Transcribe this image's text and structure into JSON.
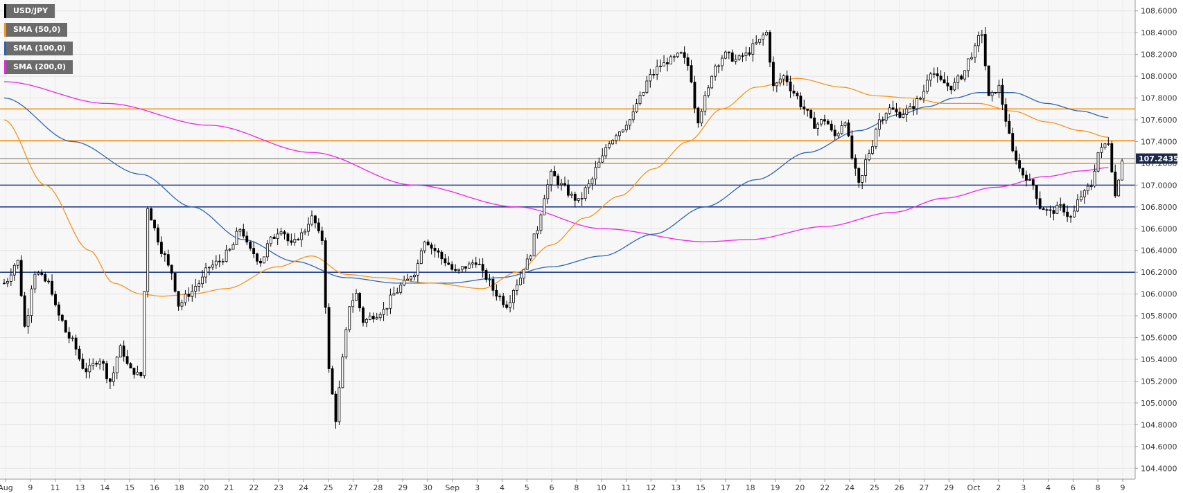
{
  "chart_data": {
    "type": "candlestick",
    "symbol": "USD/JPY",
    "last_price_label": "107.2435",
    "y_range": [
      104.3,
      108.7
    ],
    "y_ticks": [
      "104.4000",
      "104.6000",
      "104.8000",
      "105.0000",
      "105.2000",
      "105.4000",
      "105.6000",
      "105.8000",
      "106.0000",
      "106.2000",
      "106.4000",
      "106.6000",
      "106.8000",
      "107.0000",
      "107.2000",
      "107.4000",
      "107.6000",
      "107.8000",
      "108.0000",
      "108.2000",
      "108.4000",
      "108.6000"
    ],
    "x_ticks": [
      "Aug",
      "9",
      "11",
      "13",
      "14",
      "15",
      "16",
      "18",
      "20",
      "21",
      "22",
      "23",
      "24",
      "25",
      "27",
      "28",
      "29",
      "30",
      "Sep",
      "3",
      "4",
      "5",
      "6",
      "8",
      "10",
      "11",
      "12",
      "13",
      "15",
      "17",
      "18",
      "19",
      "20",
      "22",
      "24",
      "25",
      "26",
      "27",
      "29",
      "Oct",
      "2",
      "3",
      "4",
      "6",
      "8",
      "9"
    ],
    "legend": [
      {
        "label": "USD/JPY",
        "color": "#000000"
      },
      {
        "label": "SMA (50,0)",
        "color": "#f7931a"
      },
      {
        "label": "SMA (100,0)",
        "color": "#2b63b8"
      },
      {
        "label": "SMA (200,0)",
        "color": "#ee22ee"
      }
    ],
    "horizontal_levels": [
      {
        "value": 107.7,
        "color": "#f7931a"
      },
      {
        "value": 107.41,
        "color": "#f7931a"
      },
      {
        "value": 107.2,
        "color": "#f7931a"
      },
      {
        "value": 107.0,
        "color": "#1f3f8f"
      },
      {
        "value": 106.8,
        "color": "#1f3f8f"
      },
      {
        "value": 106.2,
        "color": "#1f3f8f"
      }
    ],
    "price_anchors": [
      [
        0,
        106.1
      ],
      [
        4,
        106.3
      ],
      [
        6,
        105.7
      ],
      [
        9,
        106.2
      ],
      [
        13,
        106.1
      ],
      [
        16,
        105.8
      ],
      [
        19,
        105.6
      ],
      [
        24,
        105.3
      ],
      [
        28,
        105.4
      ],
      [
        31,
        105.2
      ],
      [
        34,
        105.5
      ],
      [
        37,
        105.3
      ],
      [
        40,
        105.25
      ],
      [
        42,
        106.8
      ],
      [
        44,
        106.6
      ],
      [
        46,
        106.4
      ],
      [
        49,
        106.2
      ],
      [
        51,
        105.9
      ],
      [
        54,
        106.0
      ],
      [
        57,
        106.1
      ],
      [
        60,
        106.25
      ],
      [
        63,
        106.3
      ],
      [
        66,
        106.4
      ],
      [
        69,
        106.6
      ],
      [
        72,
        106.4
      ],
      [
        75,
        106.3
      ],
      [
        78,
        106.5
      ],
      [
        81,
        106.6
      ],
      [
        84,
        106.45
      ],
      [
        87,
        106.55
      ],
      [
        90,
        106.7
      ],
      [
        93,
        106.5
      ],
      [
        95,
        105.3
      ],
      [
        97,
        104.85
      ],
      [
        99,
        105.4
      ],
      [
        101,
        105.9
      ],
      [
        103,
        106.0
      ],
      [
        105,
        105.75
      ],
      [
        108,
        105.8
      ],
      [
        111,
        105.85
      ],
      [
        114,
        106.0
      ],
      [
        117,
        106.1
      ],
      [
        120,
        106.2
      ],
      [
        123,
        106.5
      ],
      [
        126,
        106.4
      ],
      [
        129,
        106.3
      ],
      [
        132,
        106.2
      ],
      [
        135,
        106.25
      ],
      [
        138,
        106.3
      ],
      [
        141,
        106.15
      ],
      [
        144,
        106.0
      ],
      [
        147,
        105.9
      ],
      [
        150,
        106.1
      ],
      [
        153,
        106.3
      ],
      [
        156,
        106.6
      ],
      [
        158,
        106.9
      ],
      [
        160,
        107.1
      ],
      [
        163,
        107.0
      ],
      [
        166,
        106.9
      ],
      [
        168,
        106.85
      ],
      [
        171,
        107.0
      ],
      [
        174,
        107.2
      ],
      [
        177,
        107.4
      ],
      [
        180,
        107.5
      ],
      [
        183,
        107.6
      ],
      [
        186,
        107.8
      ],
      [
        189,
        108.0
      ],
      [
        192,
        108.1
      ],
      [
        195,
        108.15
      ],
      [
        198,
        108.2
      ],
      [
        200,
        108.1
      ],
      [
        203,
        107.6
      ],
      [
        205,
        107.8
      ],
      [
        208,
        108.1
      ],
      [
        211,
        108.2
      ],
      [
        214,
        108.15
      ],
      [
        217,
        108.2
      ],
      [
        220,
        108.3
      ],
      [
        223,
        108.4
      ],
      [
        225,
        107.9
      ],
      [
        228,
        108.0
      ],
      [
        231,
        107.85
      ],
      [
        234,
        107.7
      ],
      [
        237,
        107.55
      ],
      [
        240,
        107.6
      ],
      [
        243,
        107.45
      ],
      [
        246,
        107.6
      ],
      [
        248,
        107.25
      ],
      [
        250,
        107.0
      ],
      [
        253,
        107.3
      ],
      [
        256,
        107.6
      ],
      [
        259,
        107.7
      ],
      [
        262,
        107.65
      ],
      [
        265,
        107.7
      ],
      [
        268,
        107.8
      ],
      [
        271,
        108.05
      ],
      [
        274,
        107.95
      ],
      [
        277,
        107.9
      ],
      [
        280,
        108.0
      ],
      [
        283,
        108.2
      ],
      [
        286,
        108.4
      ],
      [
        288,
        107.8
      ],
      [
        291,
        107.9
      ],
      [
        293,
        107.6
      ],
      [
        295,
        107.3
      ],
      [
        298,
        107.1
      ],
      [
        301,
        107.0
      ],
      [
        303,
        106.8
      ],
      [
        306,
        106.75
      ],
      [
        309,
        106.8
      ],
      [
        312,
        106.7
      ],
      [
        315,
        106.9
      ],
      [
        318,
        107.0
      ],
      [
        320,
        107.3
      ],
      [
        323,
        107.4
      ],
      [
        325,
        106.9
      ],
      [
        327,
        107.24
      ]
    ],
    "sma50_anchors": [
      [
        0,
        107.6
      ],
      [
        12,
        107.0
      ],
      [
        25,
        106.4
      ],
      [
        32,
        106.1
      ],
      [
        40,
        106.0
      ],
      [
        46,
        105.98
      ],
      [
        55,
        106.0
      ],
      [
        65,
        106.05
      ],
      [
        80,
        106.25
      ],
      [
        90,
        106.35
      ],
      [
        100,
        106.18
      ],
      [
        110,
        106.15
      ],
      [
        125,
        106.1
      ],
      [
        140,
        106.05
      ],
      [
        150,
        106.2
      ],
      [
        160,
        106.45
      ],
      [
        170,
        106.7
      ],
      [
        180,
        106.9
      ],
      [
        190,
        107.15
      ],
      [
        200,
        107.4
      ],
      [
        210,
        107.7
      ],
      [
        220,
        107.9
      ],
      [
        232,
        107.98
      ],
      [
        245,
        107.9
      ],
      [
        255,
        107.82
      ],
      [
        265,
        107.8
      ],
      [
        275,
        107.75
      ],
      [
        285,
        107.75
      ],
      [
        295,
        107.68
      ],
      [
        305,
        107.58
      ],
      [
        315,
        107.5
      ],
      [
        323,
        107.44
      ]
    ],
    "sma100_anchors": [
      [
        0,
        107.8
      ],
      [
        20,
        107.4
      ],
      [
        40,
        107.1
      ],
      [
        55,
        106.8
      ],
      [
        70,
        106.5
      ],
      [
        85,
        106.3
      ],
      [
        100,
        106.15
      ],
      [
        115,
        106.1
      ],
      [
        130,
        106.1
      ],
      [
        145,
        106.15
      ],
      [
        160,
        106.25
      ],
      [
        175,
        106.35
      ],
      [
        190,
        106.55
      ],
      [
        205,
        106.8
      ],
      [
        220,
        107.05
      ],
      [
        235,
        107.3
      ],
      [
        250,
        107.5
      ],
      [
        262,
        107.65
      ],
      [
        270,
        107.72
      ],
      [
        278,
        107.8
      ],
      [
        285,
        107.85
      ],
      [
        295,
        107.85
      ],
      [
        305,
        107.75
      ],
      [
        315,
        107.68
      ],
      [
        323,
        107.62
      ]
    ],
    "sma200_anchors": [
      [
        0,
        107.95
      ],
      [
        30,
        107.75
      ],
      [
        60,
        107.55
      ],
      [
        90,
        107.3
      ],
      [
        120,
        107.0
      ],
      [
        150,
        106.8
      ],
      [
        175,
        106.6
      ],
      [
        205,
        106.48
      ],
      [
        218,
        106.5
      ],
      [
        240,
        106.62
      ],
      [
        260,
        106.75
      ],
      [
        275,
        106.88
      ],
      [
        290,
        106.98
      ],
      [
        305,
        107.08
      ],
      [
        315,
        107.13
      ],
      [
        323,
        107.16
      ]
    ]
  }
}
